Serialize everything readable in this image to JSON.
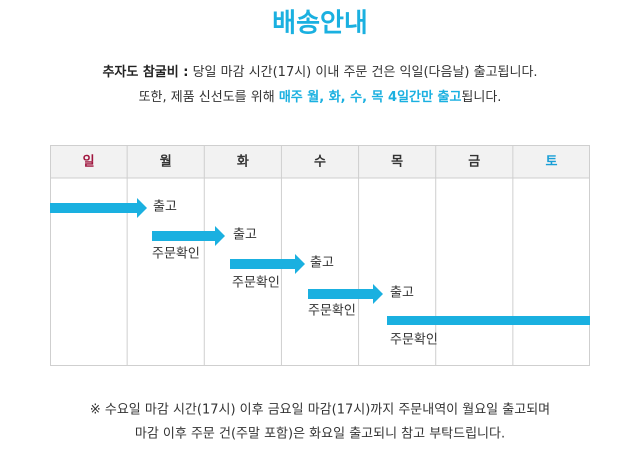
{
  "title": "배송안내",
  "notice": {
    "label": "추자도 참굴비 :",
    "text": " 당일 마감 시간(17시) 이내 주문 건은 익일(다음날) 출고됩니다."
  },
  "notice2": {
    "prefix": "또한, 제품 신선도를 위해 ",
    "highlight": "매주 월, 화, 수, 목 4일간만 출고",
    "suffix": "됩니다."
  },
  "table": {
    "headers": [
      "일",
      "월",
      "화",
      "수",
      "목",
      "금",
      "토"
    ]
  },
  "flow": {
    "ship_labels": [
      "출고",
      "출고",
      "출고",
      "출고"
    ],
    "order_labels": [
      "주문확인",
      "주문확인",
      "주문확인",
      "주문확인"
    ]
  },
  "footer": [
    "※ 수요일 마감 시간(17시) 이후 금요일 마감(17시)까지 주문내역이 월요일 출고되며",
    "마감 이후 주문 건(주말 포함)은 화요일 출고되니 참고 부탁드립니다."
  ]
}
